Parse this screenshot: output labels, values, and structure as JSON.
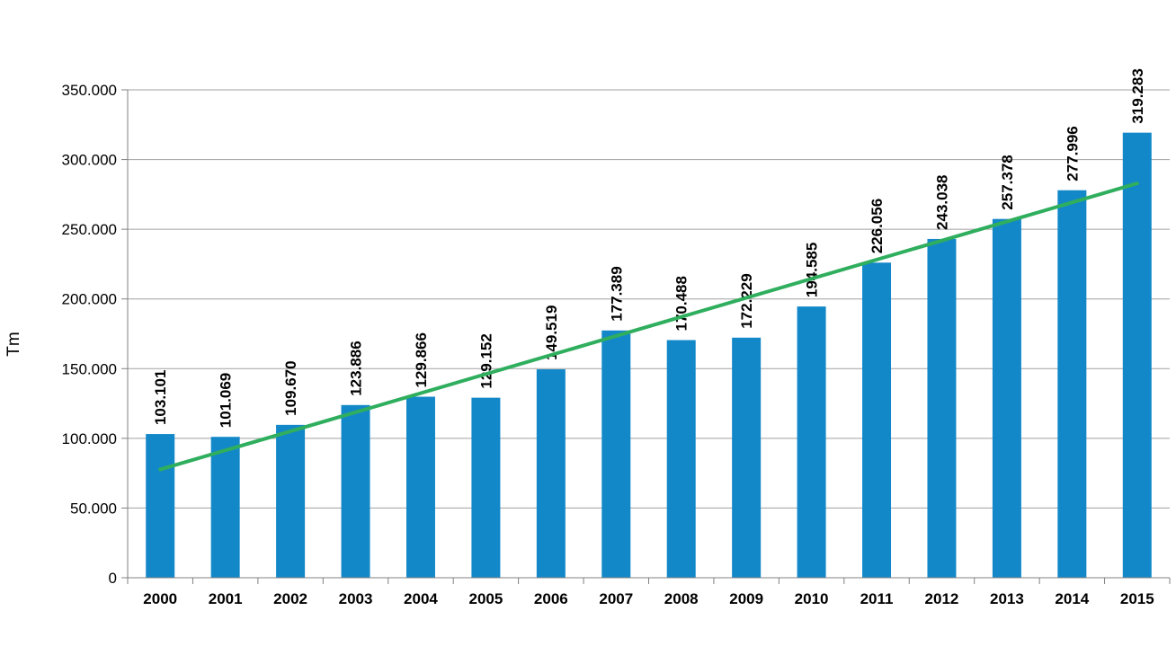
{
  "chart_data": {
    "type": "bar",
    "title": "",
    "xlabel": "",
    "ylabel": "Tm",
    "categories": [
      "2000",
      "2001",
      "2002",
      "2003",
      "2004",
      "2005",
      "2006",
      "2007",
      "2008",
      "2009",
      "2010",
      "2011",
      "2012",
      "2013",
      "2014",
      "2015"
    ],
    "values": [
      103101,
      101069,
      109670,
      123886,
      129866,
      129152,
      149519,
      177389,
      170488,
      172229,
      194585,
      226056,
      243038,
      257378,
      277996,
      319283
    ],
    "value_labels": [
      "103.101",
      "101.069",
      "109.670",
      "123.886",
      "129.866",
      "129.152",
      "149.519",
      "177.389",
      "170.488",
      "172.229",
      "194.585",
      "226.056",
      "243.038",
      "257.378",
      "277.996",
      "319.283"
    ],
    "ylim": [
      0,
      350000
    ],
    "ytick_step": 50000,
    "ytick_labels": [
      "0",
      "50.000",
      "100.000",
      "150.000",
      "200.000",
      "250.000",
      "300.000",
      "350.000"
    ],
    "grid": true,
    "legend_position": "none",
    "bar_color": "#1388c9",
    "grid_color": "#a0a0a0",
    "axis_color": "#808080",
    "text_color": "#000000",
    "background_color": "#ffffff",
    "trendline": {
      "type": "linear",
      "color": "#2fae5e",
      "value_start": 77700,
      "value_end": 282900,
      "start_category": "2000",
      "end_category": "2015"
    }
  }
}
